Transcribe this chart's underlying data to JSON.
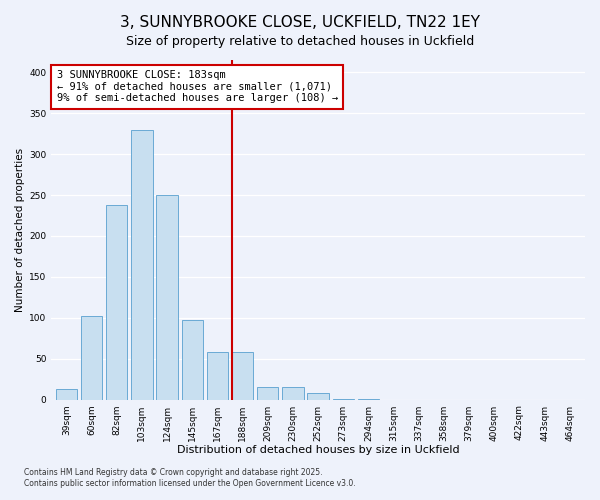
{
  "title": "3, SUNNYBROOKE CLOSE, UCKFIELD, TN22 1EY",
  "subtitle": "Size of property relative to detached houses in Uckfield",
  "xlabel": "Distribution of detached houses by size in Uckfield",
  "ylabel": "Number of detached properties",
  "bar_labels": [
    "39sqm",
    "60sqm",
    "82sqm",
    "103sqm",
    "124sqm",
    "145sqm",
    "167sqm",
    "188sqm",
    "209sqm",
    "230sqm",
    "252sqm",
    "273sqm",
    "294sqm",
    "315sqm",
    "337sqm",
    "358sqm",
    "379sqm",
    "400sqm",
    "422sqm",
    "443sqm",
    "464sqm"
  ],
  "bar_heights": [
    13,
    102,
    238,
    330,
    250,
    97,
    58,
    58,
    16,
    16,
    8,
    1,
    1,
    0,
    0,
    0,
    0,
    0,
    0,
    0,
    0
  ],
  "bar_color": "#c8dff0",
  "bar_edge_color": "#6aaad4",
  "vline_index": 7,
  "vline_color": "#cc0000",
  "annotation_title": "3 SUNNYBROOKE CLOSE: 183sqm",
  "annotation_line1": "← 91% of detached houses are smaller (1,071)",
  "annotation_line2": "9% of semi-detached houses are larger (108) →",
  "annotation_box_color": "#ffffff",
  "annotation_box_edge": "#cc0000",
  "ylim": [
    0,
    415
  ],
  "yticks": [
    0,
    50,
    100,
    150,
    200,
    250,
    300,
    350,
    400
  ],
  "background_color": "#eef2fb",
  "grid_color": "#ffffff",
  "footnote1": "Contains HM Land Registry data © Crown copyright and database right 2025.",
  "footnote2": "Contains public sector information licensed under the Open Government Licence v3.0.",
  "title_fontsize": 11,
  "xlabel_fontsize": 8,
  "ylabel_fontsize": 7.5,
  "tick_fontsize": 6.5,
  "annotation_fontsize": 7.5,
  "footnote_fontsize": 5.5
}
